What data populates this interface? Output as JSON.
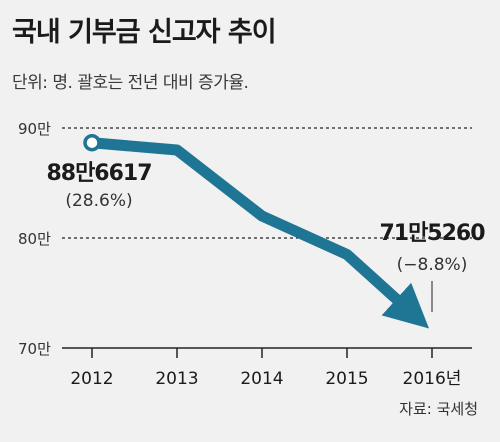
{
  "header": {
    "title": "국내 기부금 신고자 추이",
    "subtitle": "단위: 명. 괄호는 전년 대비 증가율."
  },
  "source": "자료: 국세청",
  "chart_data": {
    "type": "line",
    "title": "국내 기부금 신고자 추이",
    "subtitle": "단위: 명. 괄호는 전년 대비 증가율.",
    "categories": [
      "2012",
      "2013",
      "2014",
      "2015",
      "2016년"
    ],
    "series": [
      {
        "values": [
          886617,
          880000,
          820000,
          785000,
          715260
        ]
      }
    ],
    "yticks": [
      "90만",
      "80만",
      "70만"
    ],
    "ylim": [
      700000,
      900000
    ],
    "grid": "dotted lines at 90만 and 80만",
    "annotations": [
      {
        "point": "2012",
        "value": "88만6617",
        "rate": "(28.6%)"
      },
      {
        "point": "2016년",
        "value": "71만5260",
        "rate": "(−8.8%)"
      }
    ],
    "line_color": "#1f7694"
  }
}
